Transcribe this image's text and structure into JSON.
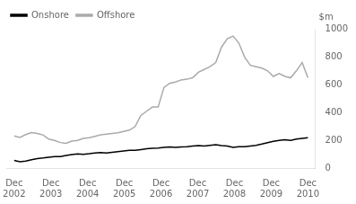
{
  "chart_data": {
    "type": "line",
    "y_label": "$m",
    "legend": "upper left",
    "grid": false,
    "x": [
      0,
      0.156863,
      0.313725,
      0.470588,
      0.627451,
      0.784314,
      0.941176,
      1.098039,
      1.254902,
      1.411765,
      1.568627,
      1.72549,
      1.882353,
      2.039216,
      2.196078,
      2.352941,
      2.509804,
      2.666667,
      2.823529,
      2.980392,
      3.137255,
      3.294118,
      3.45098,
      3.607843,
      3.764706,
      3.921569,
      4.078431,
      4.235294,
      4.392157,
      4.54902,
      4.705882,
      4.862745,
      5.019608,
      5.176471,
      5.333333,
      5.490196,
      5.647059,
      5.803922,
      5.960784,
      6.117647,
      6.27451,
      6.431373,
      6.588235,
      6.745098,
      6.901961,
      7.058824,
      7.215686,
      7.372549,
      7.529412,
      7.686275,
      7.843137,
      8
    ],
    "xlim": [
      -0.2,
      8.2
    ],
    "xticks": [
      {
        "value": 0,
        "label": "Dec\n2002"
      },
      {
        "value": 1,
        "label": "Dec\n2003"
      },
      {
        "value": 2,
        "label": "Dec\n2004"
      },
      {
        "value": 3,
        "label": "Dec\n2005"
      },
      {
        "value": 4,
        "label": "Dec\n2006"
      },
      {
        "value": 5,
        "label": "Dec\n2007"
      },
      {
        "value": 6,
        "label": "Dec\n2008"
      },
      {
        "value": 7,
        "label": "Dec\n2009"
      },
      {
        "value": 8,
        "label": "Dec\n2010"
      }
    ],
    "ylim": [
      0,
      1000
    ],
    "yticks": [
      0,
      200,
      400,
      600,
      800,
      1000
    ],
    "series": [
      {
        "name": "Onshore",
        "color": "#000000",
        "values": [
          55,
          45,
          50,
          60,
          68,
          72,
          78,
          82,
          83,
          90,
          97,
          102,
          99,
          103,
          108,
          112,
          108,
          113,
          118,
          123,
          128,
          128,
          133,
          138,
          142,
          143,
          148,
          152,
          148,
          152,
          153,
          158,
          162,
          158,
          163,
          168,
          162,
          158,
          148,
          153,
          153,
          158,
          163,
          172,
          182,
          192,
          198,
          203,
          198,
          208,
          213,
          218
        ]
      },
      {
        "name": "Offshore",
        "color": "#aaaaaa",
        "values": [
          230,
          220,
          240,
          255,
          248,
          238,
          208,
          198,
          183,
          178,
          193,
          198,
          213,
          218,
          228,
          238,
          243,
          248,
          253,
          263,
          272,
          298,
          378,
          408,
          438,
          438,
          578,
          608,
          618,
          633,
          638,
          648,
          688,
          708,
          728,
          758,
          868,
          928,
          948,
          898,
          798,
          738,
          728,
          718,
          698,
          658,
          678,
          658,
          648,
          698,
          758,
          648
        ]
      }
    ]
  }
}
